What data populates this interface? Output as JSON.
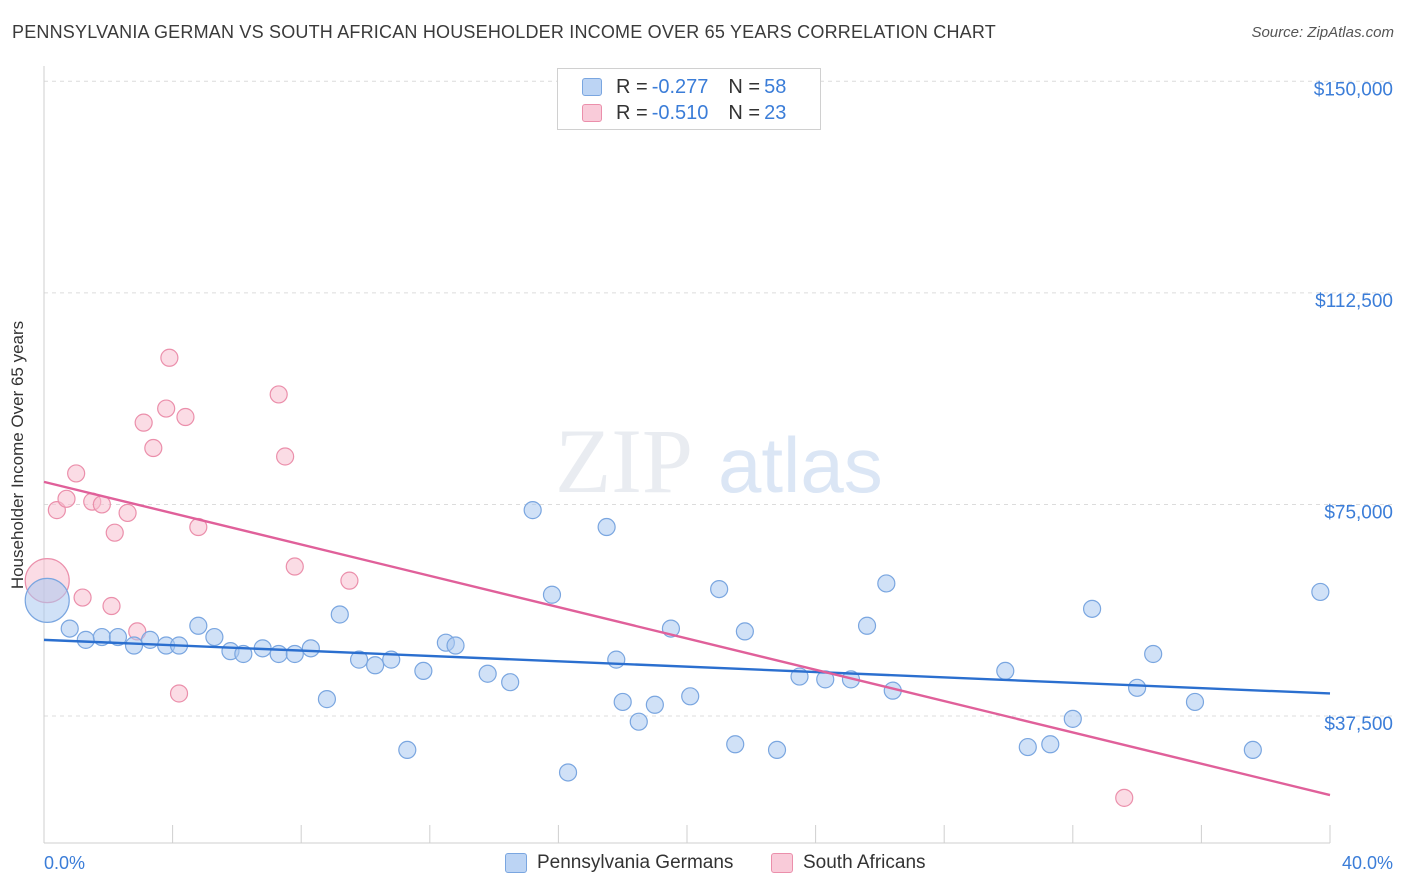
{
  "chart_data": {
    "type": "scatter",
    "title": "PENNSYLVANIA GERMAN VS SOUTH AFRICAN HOUSEHOLDER INCOME OVER 65 YEARS CORRELATION CHART",
    "source": "Source: ZipAtlas.com",
    "watermark": {
      "zip": "ZIP",
      "atlas": "atlas"
    },
    "ylabel": "Householder Income Over 65 years",
    "xlim": [
      0,
      40
    ],
    "ylim": [
      15000,
      152000
    ],
    "x_tick_labels": {
      "left": "0.0%",
      "right": "40.0%"
    },
    "y_ticks": [
      {
        "value": 150000,
        "label": "$150,000"
      },
      {
        "value": 112500,
        "label": "$112,500"
      },
      {
        "value": 75000,
        "label": "$75,000"
      },
      {
        "value": 37500,
        "label": "$37,500"
      }
    ],
    "legend": [
      {
        "r_label": "R = ",
        "r_value": "-0.277",
        "n_label": "N = ",
        "n_value": "58"
      },
      {
        "r_label": "R = ",
        "r_value": "-0.510",
        "n_label": "N = ",
        "n_value": "23"
      }
    ],
    "series": [
      {
        "name": "Pennsylvania Germans",
        "color": "#a9c8f0",
        "stroke": "#7aa6e0",
        "line_color": "#2b6fcf",
        "trend": {
          "x": [
            0,
            40
          ],
          "y": [
            51000,
            41500
          ]
        },
        "points": [
          [
            0.1,
            58000
          ],
          [
            0.8,
            53000
          ],
          [
            1.3,
            51000
          ],
          [
            1.8,
            51500
          ],
          [
            2.3,
            51500
          ],
          [
            2.8,
            50000
          ],
          [
            3.3,
            51000
          ],
          [
            3.8,
            50000
          ],
          [
            4.2,
            50000
          ],
          [
            4.8,
            53500
          ],
          [
            5.3,
            51500
          ],
          [
            5.8,
            49000
          ],
          [
            6.2,
            48500
          ],
          [
            6.8,
            49500
          ],
          [
            7.3,
            48500
          ],
          [
            7.8,
            48500
          ],
          [
            8.3,
            49500
          ],
          [
            8.8,
            40500
          ],
          [
            9.2,
            55500
          ],
          [
            9.8,
            47500
          ],
          [
            10.3,
            46500
          ],
          [
            10.8,
            47500
          ],
          [
            11.3,
            31500
          ],
          [
            11.8,
            45500
          ],
          [
            12.5,
            50500
          ],
          [
            12.8,
            50000
          ],
          [
            13.8,
            45000
          ],
          [
            14.5,
            43500
          ],
          [
            15.2,
            74000
          ],
          [
            15.8,
            59000
          ],
          [
            16.3,
            27500
          ],
          [
            17.5,
            71000
          ],
          [
            17.8,
            47500
          ],
          [
            18.0,
            40000
          ],
          [
            18.5,
            36500
          ],
          [
            19.0,
            39500
          ],
          [
            19.5,
            53000
          ],
          [
            20.1,
            41000
          ],
          [
            21.0,
            60000
          ],
          [
            21.5,
            32500
          ],
          [
            21.8,
            52500
          ],
          [
            22.8,
            31500
          ],
          [
            23.5,
            44500
          ],
          [
            24.3,
            44000
          ],
          [
            25.1,
            44000
          ],
          [
            25.6,
            53500
          ],
          [
            26.2,
            61000
          ],
          [
            26.4,
            42000
          ],
          [
            29.9,
            45500
          ],
          [
            30.6,
            32000
          ],
          [
            31.3,
            32500
          ],
          [
            32.0,
            37000
          ],
          [
            32.6,
            56500
          ],
          [
            34.0,
            42500
          ],
          [
            34.5,
            48500
          ],
          [
            35.8,
            40000
          ],
          [
            37.6,
            31500
          ],
          [
            39.7,
            59500
          ]
        ],
        "big_point_index": 0
      },
      {
        "name": "South Africans",
        "color": "#f7bfd0",
        "stroke": "#eb8fab",
        "line_color": "#e0609a",
        "trend": {
          "x": [
            0,
            40
          ],
          "y": [
            79000,
            23500
          ]
        },
        "points": [
          [
            0.1,
            61500
          ],
          [
            0.4,
            74000
          ],
          [
            0.7,
            76000
          ],
          [
            1.0,
            80500
          ],
          [
            1.2,
            58500
          ],
          [
            1.5,
            75500
          ],
          [
            1.8,
            75000
          ],
          [
            2.1,
            57000
          ],
          [
            2.2,
            70000
          ],
          [
            2.6,
            73500
          ],
          [
            2.9,
            52500
          ],
          [
            3.1,
            89500
          ],
          [
            3.4,
            85000
          ],
          [
            3.8,
            92000
          ],
          [
            3.9,
            101000
          ],
          [
            4.2,
            41500
          ],
          [
            4.4,
            90500
          ],
          [
            4.8,
            71000
          ],
          [
            7.3,
            94500
          ],
          [
            7.5,
            83500
          ],
          [
            7.8,
            64000
          ],
          [
            9.5,
            61500
          ],
          [
            33.6,
            23000
          ]
        ],
        "big_point_index": 0
      }
    ]
  }
}
